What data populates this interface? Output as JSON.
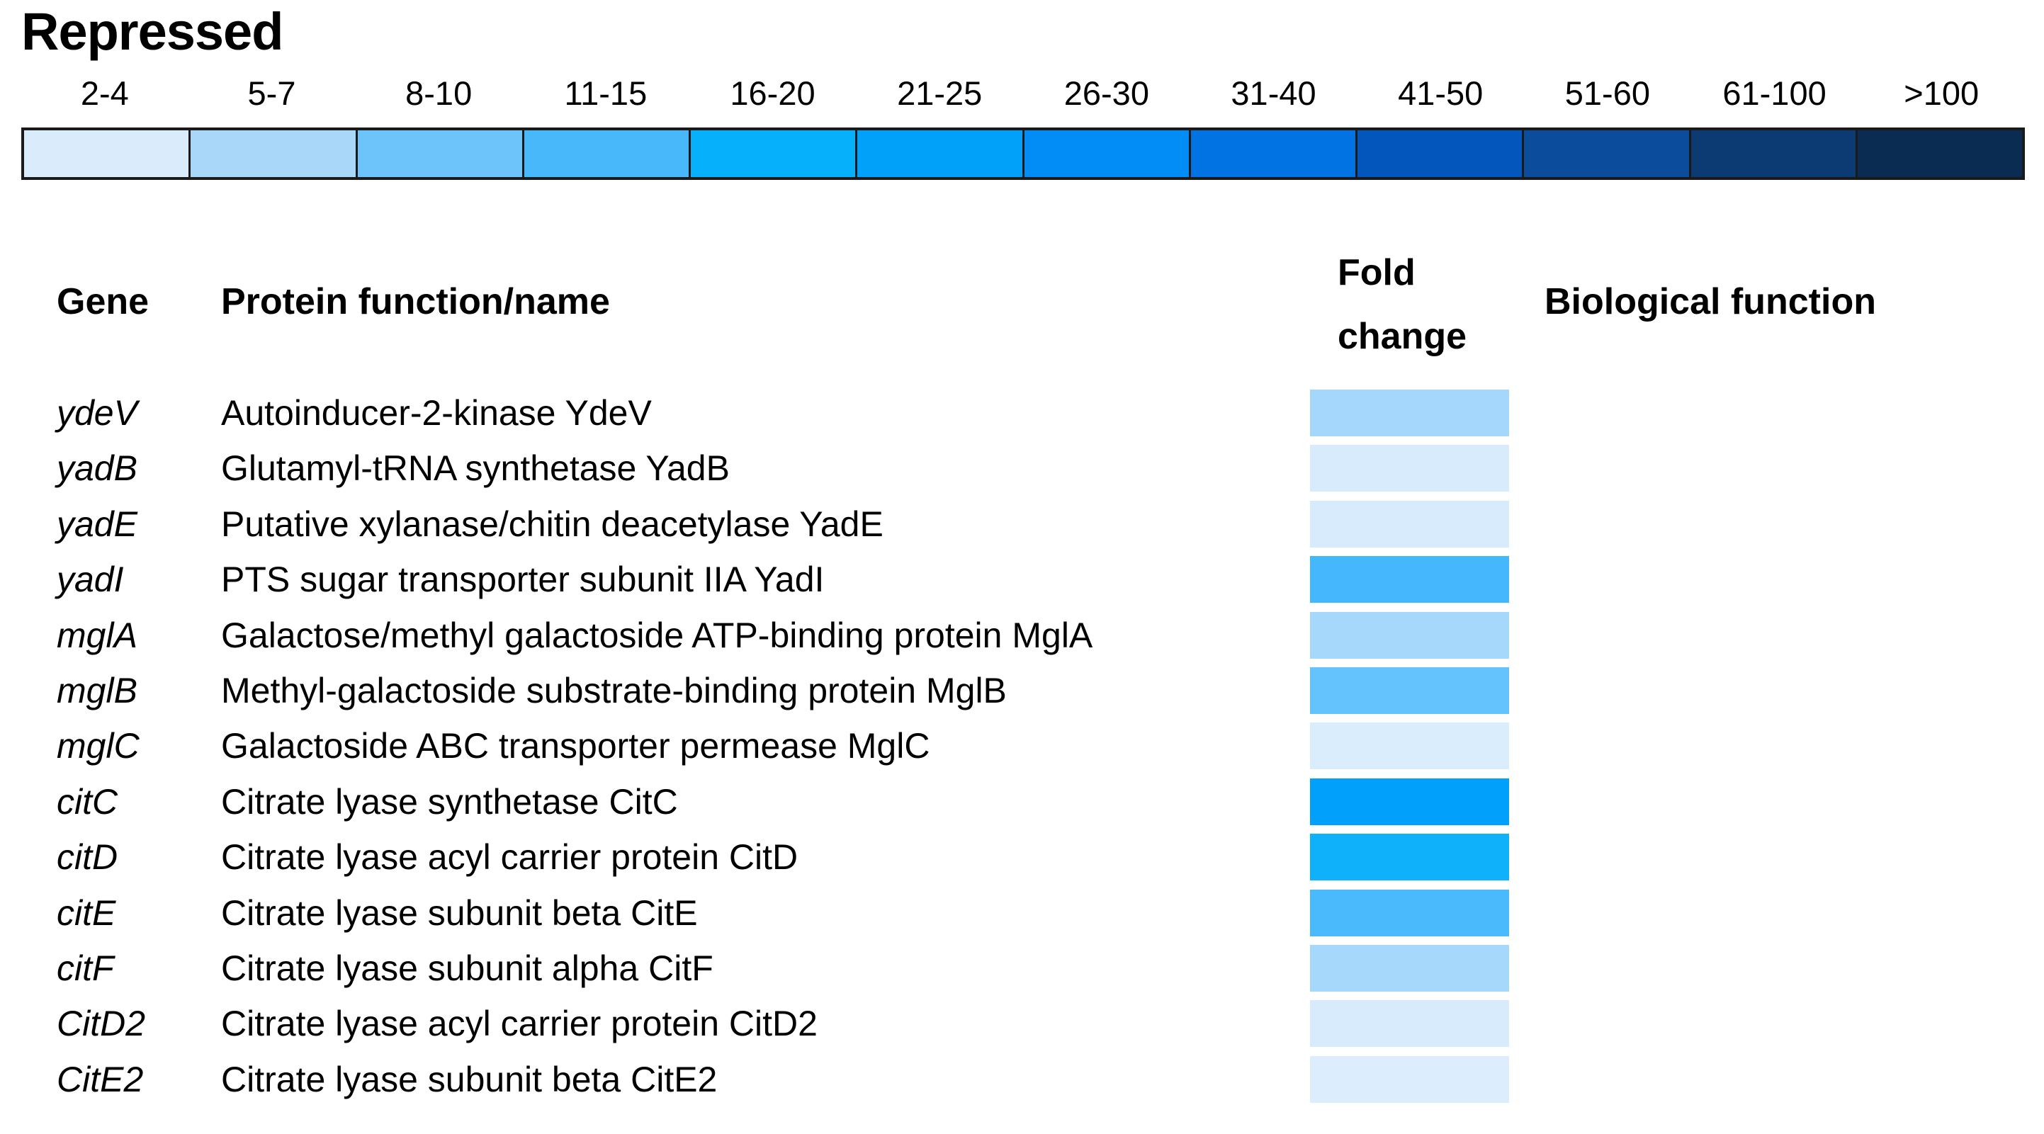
{
  "title": "Repressed",
  "colors": {
    "background": "#FFFFFF",
    "text": "#000000",
    "legend_border": "#1A1A1A"
  },
  "legend": {
    "bins": [
      {
        "label": "2-4",
        "color": "#DAEBFB"
      },
      {
        "label": "5-7",
        "color": "#A8D7FA"
      },
      {
        "label": "8-10",
        "color": "#6CC4FB"
      },
      {
        "label": "11-15",
        "color": "#49B8FB"
      },
      {
        "label": "16-20",
        "color": "#06B0FA"
      },
      {
        "label": "21-25",
        "color": "#01A0F9"
      },
      {
        "label": "26-30",
        "color": "#018DF5"
      },
      {
        "label": "31-40",
        "color": "#0273E2"
      },
      {
        "label": "41-50",
        "color": "#0357BC"
      },
      {
        "label": "51-60",
        "color": "#0C4C9C"
      },
      {
        "label": "61-100",
        "color": "#0C3B74"
      },
      {
        "label": ">100",
        "color": "#0A2C52"
      }
    ]
  },
  "table": {
    "headers": {
      "gene": "Gene",
      "protein": "Protein function/name",
      "fold_change": "Fold change",
      "biological": "Biological function"
    },
    "rows": [
      {
        "gene": "ydeV",
        "protein": "Autoinducer-2-kinase YdeV",
        "fold_change_bin": "5-7",
        "fold_color": "#A4D7FB",
        "biological_function": ""
      },
      {
        "gene": "yadB",
        "protein": "Glutamyl-tRNA synthetase YadB",
        "fold_change_bin": "2-4",
        "fold_color": "#D8EBFC",
        "biological_function": ""
      },
      {
        "gene": "yadE",
        "protein": "Putative xylanase/chitin deacetylase YadE",
        "fold_change_bin": "2-4",
        "fold_color": "#D8EBFC",
        "biological_function": ""
      },
      {
        "gene": "yadI",
        "protein": "PTS sugar transporter subunit IIA YadI",
        "fold_change_bin": "11-15",
        "fold_color": "#45B7FC",
        "biological_function": ""
      },
      {
        "gene": "mglA",
        "protein": "Galactose/methyl galactoside ATP-binding protein MglA",
        "fold_change_bin": "5-7",
        "fold_color": "#A6D8FB",
        "biological_function": ""
      },
      {
        "gene": "mglB",
        "protein": "Methyl-galactoside substrate-binding protein MglB",
        "fold_change_bin": "8-10",
        "fold_color": "#64C2FC",
        "biological_function": ""
      },
      {
        "gene": "mglC",
        "protein": "Galactoside ABC transporter permease MglC",
        "fold_change_bin": "2-4",
        "fold_color": "#DAEDFD",
        "biological_function": ""
      },
      {
        "gene": "citC",
        "protein": "Citrate lyase synthetase CitC",
        "fold_change_bin": "21-25",
        "fold_color": "#01A0FA",
        "biological_function": ""
      },
      {
        "gene": "citD",
        "protein": "Citrate lyase acyl carrier protein CitD",
        "fold_change_bin": "16-20",
        "fold_color": "#0FB1FB",
        "biological_function": ""
      },
      {
        "gene": "citE",
        "protein": "Citrate lyase subunit beta CitE",
        "fold_change_bin": "11-15",
        "fold_color": "#4BBAFC",
        "biological_function": ""
      },
      {
        "gene": "citF",
        "protein": "Citrate lyase subunit alpha CitF",
        "fold_change_bin": "5-7",
        "fold_color": "#A6D8FB",
        "biological_function": ""
      },
      {
        "gene": "CitD2",
        "protein": "Citrate lyase acyl carrier protein CitD2",
        "fold_change_bin": "2-4",
        "fold_color": "#D8EBFC",
        "biological_function": ""
      },
      {
        "gene": "CitE2",
        "protein": "Citrate lyase subunit beta CitE2",
        "fold_change_bin": "2-4",
        "fold_color": "#DCEEFD",
        "biological_function": ""
      }
    ]
  },
  "chart_data": {
    "type": "heatmap",
    "title": "Repressed",
    "legend_bins": [
      "2-4",
      "5-7",
      "8-10",
      "11-15",
      "16-20",
      "21-25",
      "26-30",
      "31-40",
      "41-50",
      "51-60",
      "61-100",
      ">100"
    ],
    "legend_colors": [
      "#DAEBFB",
      "#A8D7FA",
      "#6CC4FB",
      "#49B8FB",
      "#06B0FA",
      "#01A0F9",
      "#018DF5",
      "#0273E2",
      "#0357BC",
      "#0C4C9C",
      "#0C3B74",
      "#0A2C52"
    ],
    "categories": [
      "ydeV",
      "yadB",
      "yadE",
      "yadI",
      "mglA",
      "mglB",
      "mglC",
      "citC",
      "citD",
      "citE",
      "citF",
      "CitD2",
      "CitE2"
    ],
    "series": [
      {
        "name": "Fold change",
        "values": [
          "5-7",
          "2-4",
          "2-4",
          "11-15",
          "5-7",
          "8-10",
          "2-4",
          "21-25",
          "16-20",
          "11-15",
          "5-7",
          "2-4",
          "2-4"
        ]
      }
    ],
    "legend_position": "top",
    "grid": false
  }
}
